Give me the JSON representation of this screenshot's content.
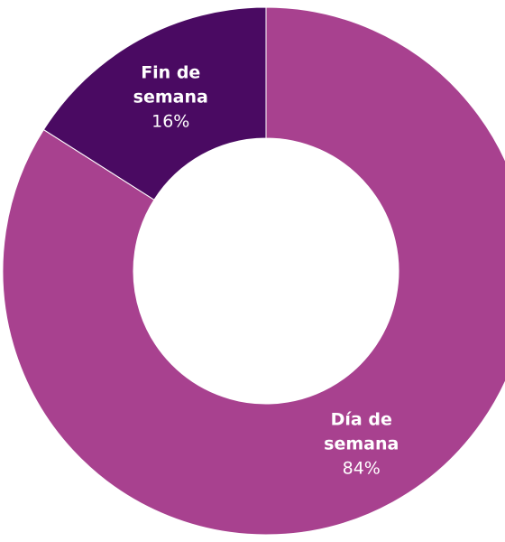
{
  "chart_data": {
    "type": "donut",
    "categories": [
      "Día de semana",
      "Fin de semana"
    ],
    "values": [
      84,
      16
    ],
    "value_labels": [
      "84%",
      "16%"
    ],
    "colors": [
      "#a8418f",
      "#4a0a62"
    ]
  }
}
